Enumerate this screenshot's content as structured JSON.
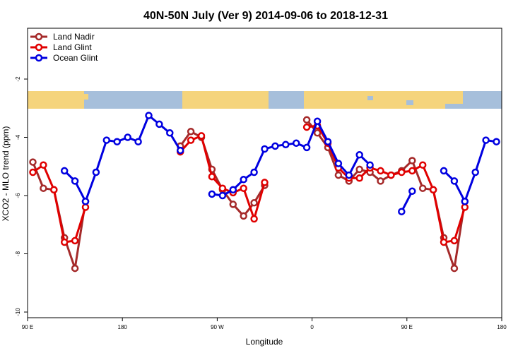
{
  "chart_data": {
    "type": "line",
    "title": "40N-50N July (Ver 9)   2014-09-06 to 2018-12-31",
    "xlabel": "Longitude",
    "ylabel": "XCO2 - MLO trend (ppm)",
    "x_ticks": [
      {
        "value": 90,
        "label": "90 E"
      },
      {
        "value": 180,
        "label": "180"
      },
      {
        "value": 270,
        "label": "90 W"
      },
      {
        "value": 360,
        "label": "0"
      },
      {
        "value": 450,
        "label": "90 E"
      },
      {
        "value": 540,
        "label": "180"
      }
    ],
    "y_ticks": [
      -10,
      -8,
      -6,
      -4,
      -2
    ],
    "xlim": [
      90,
      540
    ],
    "ylim": [
      -10,
      0
    ],
    "legend_position": "top-left",
    "grid": false,
    "series": [
      {
        "name": "Land Nadir",
        "color": "#a52a2a",
        "points": [
          [
            95,
            -4.85
          ],
          [
            105,
            -5.75
          ],
          [
            115,
            -5.8
          ],
          [
            125,
            -7.45
          ],
          [
            135,
            -8.5
          ],
          [
            145,
            -6.2
          ],
          [
            235,
            -4.3
          ],
          [
            245,
            -3.8
          ],
          [
            255,
            -4.0
          ],
          [
            265,
            -5.1
          ],
          [
            275,
            -5.8
          ],
          [
            285,
            -6.3
          ],
          [
            295,
            -6.7
          ],
          [
            305,
            -6.25
          ],
          [
            315,
            -5.65
          ],
          [
            355,
            -3.4
          ],
          [
            365,
            -3.85
          ],
          [
            375,
            -4.35
          ],
          [
            385,
            -5.3
          ],
          [
            395,
            -5.5
          ],
          [
            405,
            -5.1
          ],
          [
            415,
            -5.2
          ],
          [
            425,
            -5.5
          ],
          [
            435,
            -5.3
          ],
          [
            445,
            -5.15
          ],
          [
            455,
            -4.8
          ],
          [
            465,
            -5.75
          ],
          [
            475,
            -5.8
          ],
          [
            485,
            -7.45
          ],
          [
            495,
            -8.5
          ],
          [
            505,
            -6.2
          ]
        ]
      },
      {
        "name": "Land Glint",
        "color": "#e00000",
        "points": [
          [
            95,
            -5.2
          ],
          [
            105,
            -4.95
          ],
          [
            115,
            -5.8
          ],
          [
            125,
            -7.6
          ],
          [
            135,
            -7.55
          ],
          [
            145,
            -6.4
          ],
          [
            235,
            -4.5
          ],
          [
            245,
            -4.1
          ],
          [
            255,
            -3.95
          ],
          [
            265,
            -5.35
          ],
          [
            275,
            -5.75
          ],
          [
            285,
            -5.9
          ],
          [
            295,
            -5.75
          ],
          [
            305,
            -6.8
          ],
          [
            315,
            -5.55
          ],
          [
            355,
            -3.65
          ],
          [
            365,
            -3.6
          ],
          [
            375,
            -4.2
          ],
          [
            385,
            -5.05
          ],
          [
            395,
            -5.4
          ],
          [
            405,
            -5.4
          ],
          [
            415,
            -5.05
          ],
          [
            425,
            -5.15
          ],
          [
            435,
            -5.3
          ],
          [
            445,
            -5.2
          ],
          [
            455,
            -5.15
          ],
          [
            465,
            -4.95
          ],
          [
            475,
            -5.8
          ],
          [
            485,
            -7.6
          ],
          [
            495,
            -7.55
          ],
          [
            505,
            -6.4
          ]
        ]
      },
      {
        "name": "Ocean Glint",
        "color": "#0000e0",
        "segments": [
          [
            [
              125,
              -5.15
            ],
            [
              135,
              -5.5
            ],
            [
              145,
              -6.2
            ],
            [
              155,
              -5.2
            ],
            [
              165,
              -4.1
            ],
            [
              175,
              -4.15
            ],
            [
              185,
              -4.0
            ],
            [
              195,
              -4.15
            ],
            [
              205,
              -3.25
            ],
            [
              215,
              -3.55
            ],
            [
              225,
              -3.85
            ],
            [
              235,
              -4.45
            ]
          ],
          [
            [
              265,
              -5.95
            ],
            [
              275,
              -6.0
            ],
            [
              285,
              -5.8
            ],
            [
              295,
              -5.45
            ],
            [
              305,
              -5.2
            ],
            [
              315,
              -4.4
            ],
            [
              325,
              -4.3
            ],
            [
              335,
              -4.25
            ],
            [
              345,
              -4.2
            ],
            [
              355,
              -4.35
            ],
            [
              365,
              -3.45
            ],
            [
              375,
              -4.15
            ],
            [
              385,
              -4.9
            ],
            [
              395,
              -5.3
            ],
            [
              405,
              -4.6
            ],
            [
              415,
              -4.95
            ]
          ],
          [
            [
              445,
              -6.55
            ],
            [
              455,
              -5.85
            ]
          ],
          [
            [
              485,
              -5.15
            ],
            [
              495,
              -5.5
            ],
            [
              505,
              -6.2
            ],
            [
              515,
              -5.2
            ],
            [
              525,
              -4.1
            ],
            [
              535,
              -4.15
            ]
          ]
        ]
      }
    ]
  }
}
